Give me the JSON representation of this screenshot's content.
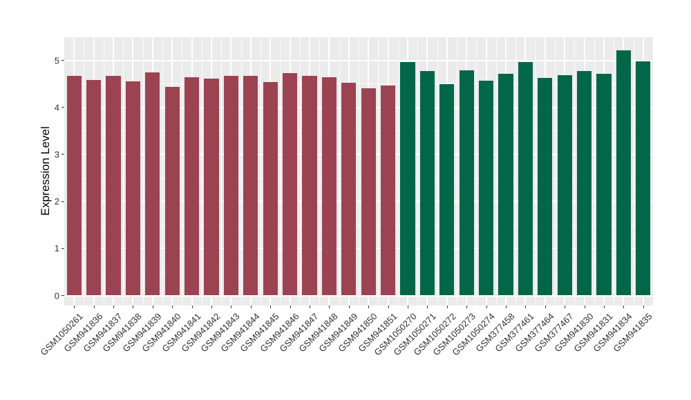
{
  "chart_data": {
    "type": "bar",
    "title": "",
    "xlabel": "",
    "ylabel": "Expression Level",
    "ylim": [
      0,
      5.5
    ],
    "yticks": [
      0,
      1,
      2,
      3,
      4,
      5
    ],
    "grid": "on",
    "legend": "none",
    "panel_bg": "#EBEBEB",
    "grid_color": "#FFFFFF",
    "group_colors": [
      "#9C4351",
      "#026648"
    ],
    "categories": [
      "GSM1050261",
      "GSM941836",
      "GSM941837",
      "GSM941838",
      "GSM941839",
      "GSM941840",
      "GSM941841",
      "GSM941842",
      "GSM941843",
      "GSM941844",
      "GSM941845",
      "GSM941846",
      "GSM941847",
      "GSM941848",
      "GSM941849",
      "GSM941850",
      "GSM941851",
      "GSM1050270",
      "GSM1050271",
      "GSM1050272",
      "GSM1050273",
      "GSM1050274",
      "GSM377458",
      "GSM377461",
      "GSM377464",
      "GSM377467",
      "GSM941830",
      "GSM941831",
      "GSM941834",
      "GSM941835"
    ],
    "values": [
      4.67,
      4.58,
      4.67,
      4.55,
      4.74,
      4.43,
      4.63,
      4.61,
      4.66,
      4.66,
      4.53,
      4.72,
      4.66,
      4.63,
      4.51,
      4.4,
      4.46,
      4.96,
      4.76,
      4.48,
      4.78,
      4.56,
      4.71,
      4.96,
      4.62,
      4.68,
      4.76,
      4.7,
      5.2,
      4.97
    ],
    "groups": [
      0,
      0,
      0,
      0,
      0,
      0,
      0,
      0,
      0,
      0,
      0,
      0,
      0,
      0,
      0,
      0,
      0,
      1,
      1,
      1,
      1,
      1,
      1,
      1,
      1,
      1,
      1,
      1,
      1,
      1
    ]
  }
}
